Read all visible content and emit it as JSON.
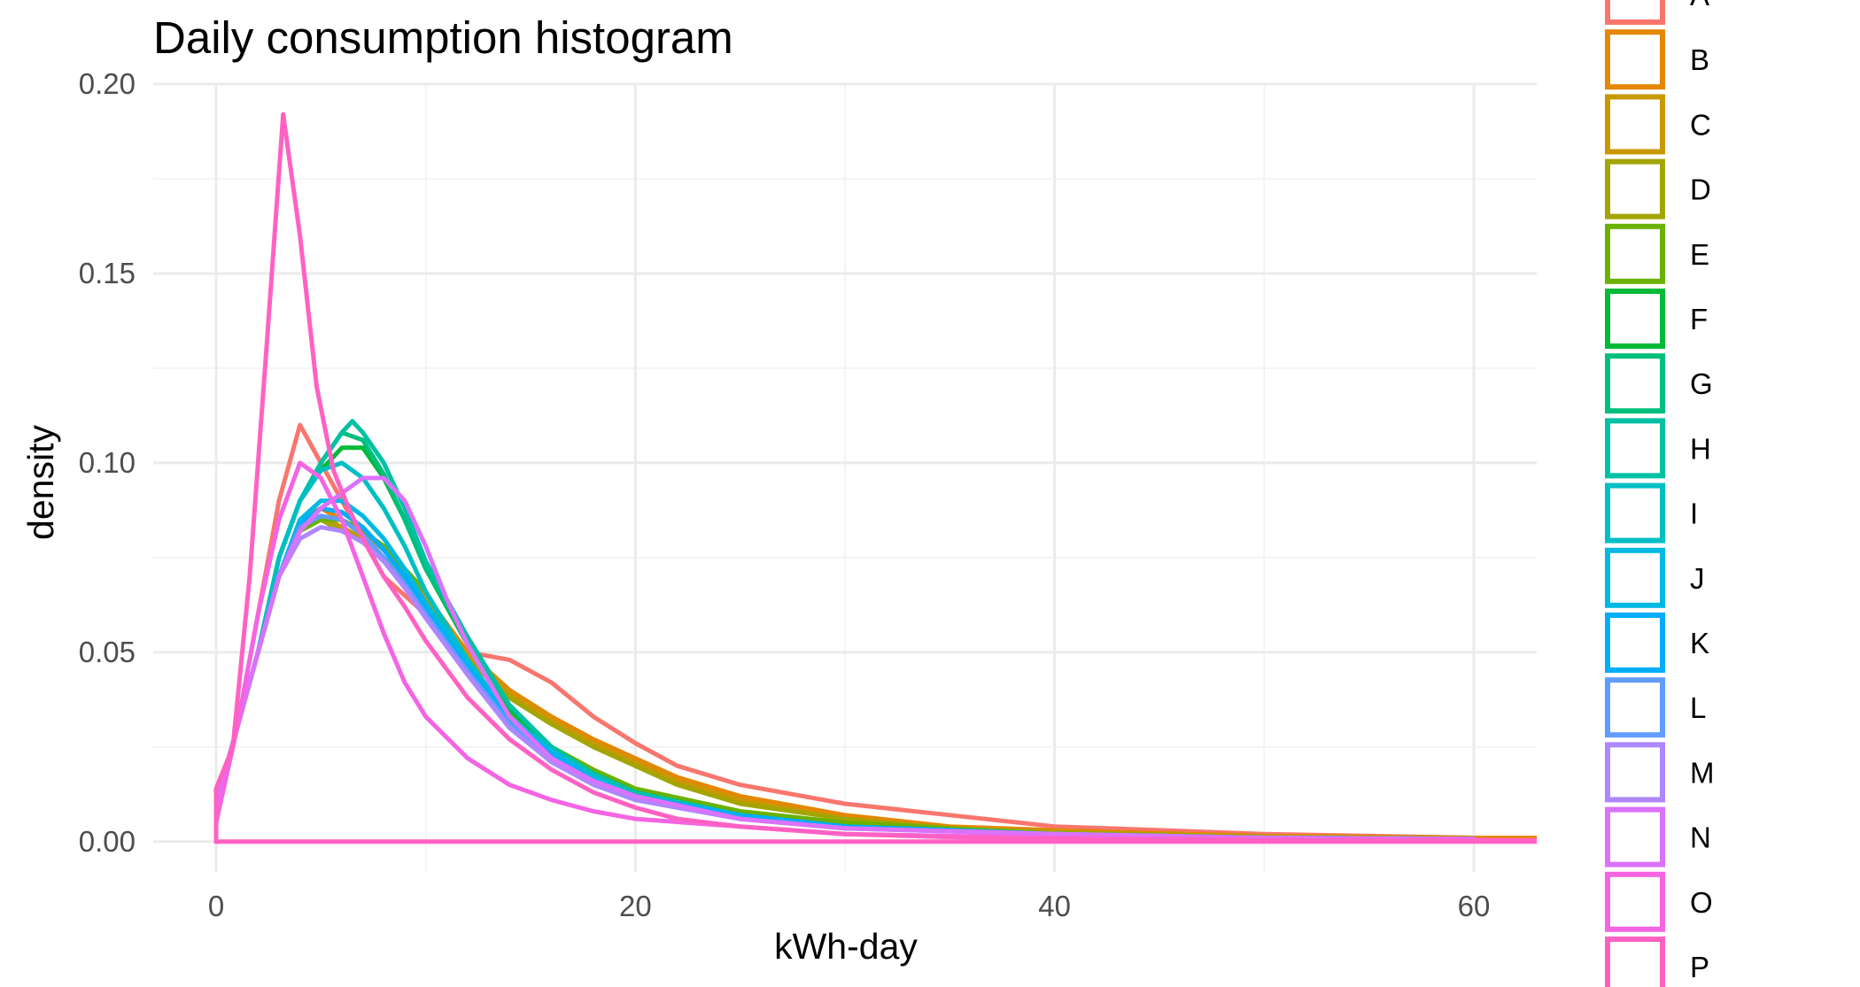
{
  "chart_data": {
    "type": "line",
    "title": "Daily consumption histogram",
    "xlabel": "kWh-day",
    "ylabel": "density",
    "xlim": [
      -3,
      63
    ],
    "ylim": [
      -0.008,
      0.2
    ],
    "x_ticks": [
      0,
      20,
      40,
      60
    ],
    "x_tick_labels": [
      "0",
      "20",
      "40",
      "60"
    ],
    "y_ticks": [
      0.0,
      0.05,
      0.1,
      0.15,
      0.2
    ],
    "y_tick_labels": [
      "0.00",
      "0.05",
      "0.10",
      "0.15",
      "0.20"
    ],
    "grid": true,
    "legend_position": "right",
    "legend": [
      "A",
      "B",
      "C",
      "D",
      "E",
      "F",
      "G",
      "H",
      "I",
      "J",
      "K",
      "L",
      "M",
      "N",
      "O",
      "P"
    ],
    "series": [
      {
        "name": "A",
        "color": "#F8766D",
        "opacity": 1.0,
        "x": [
          0,
          1,
          2,
          3,
          4,
          5,
          6,
          7,
          8,
          10,
          12,
          14,
          16,
          18,
          20,
          22,
          25,
          30,
          35,
          40,
          45,
          50,
          55,
          60,
          63
        ],
        "y": [
          0.01,
          0.03,
          0.06,
          0.09,
          0.11,
          0.1,
          0.09,
          0.08,
          0.07,
          0.06,
          0.05,
          0.048,
          0.042,
          0.033,
          0.026,
          0.02,
          0.015,
          0.01,
          0.007,
          0.004,
          0.003,
          0.002,
          0.0015,
          0.001,
          0.001
        ]
      },
      {
        "name": "B",
        "color": "#E58700",
        "opacity": 1.0,
        "x": [
          0,
          2,
          3,
          4,
          5,
          6,
          7,
          8,
          10,
          12,
          14,
          16,
          18,
          20,
          22,
          25,
          30,
          35,
          40,
          50,
          60,
          63
        ],
        "y": [
          0.01,
          0.05,
          0.07,
          0.085,
          0.088,
          0.085,
          0.082,
          0.077,
          0.065,
          0.05,
          0.04,
          0.033,
          0.027,
          0.022,
          0.017,
          0.012,
          0.007,
          0.004,
          0.003,
          0.0015,
          0.001,
          0.001
        ]
      },
      {
        "name": "C",
        "color": "#C99800",
        "opacity": 1.0,
        "x": [
          0,
          2,
          3,
          4,
          5,
          6,
          7,
          8,
          10,
          12,
          14,
          16,
          18,
          20,
          22,
          25,
          30,
          35,
          40,
          50,
          60
        ],
        "y": [
          0.01,
          0.05,
          0.07,
          0.084,
          0.086,
          0.083,
          0.08,
          0.075,
          0.064,
          0.049,
          0.039,
          0.032,
          0.026,
          0.021,
          0.016,
          0.011,
          0.006,
          0.0035,
          0.0025,
          0.0012,
          0.0008
        ]
      },
      {
        "name": "D",
        "color": "#A3A500",
        "opacity": 1.0,
        "x": [
          0,
          2,
          3,
          4,
          5,
          6,
          7,
          8,
          10,
          12,
          14,
          16,
          18,
          20,
          22,
          25,
          30,
          35,
          40,
          50,
          60
        ],
        "y": [
          0.01,
          0.05,
          0.07,
          0.083,
          0.085,
          0.082,
          0.079,
          0.074,
          0.063,
          0.048,
          0.038,
          0.031,
          0.025,
          0.02,
          0.015,
          0.01,
          0.006,
          0.0035,
          0.0025,
          0.0012,
          0.0008
        ]
      },
      {
        "name": "E",
        "color": "#6BB100",
        "opacity": 1.0,
        "x": [
          0,
          2,
          3,
          4,
          5,
          6,
          7,
          8,
          10,
          12,
          14,
          16,
          18,
          20,
          25,
          30,
          40,
          50,
          60
        ],
        "y": [
          0.01,
          0.05,
          0.07,
          0.082,
          0.085,
          0.085,
          0.082,
          0.078,
          0.066,
          0.047,
          0.034,
          0.025,
          0.019,
          0.014,
          0.008,
          0.005,
          0.002,
          0.001,
          0.0007
        ]
      },
      {
        "name": "F",
        "color": "#00BA38",
        "opacity": 1.0,
        "x": [
          0,
          2,
          3,
          4,
          5,
          6,
          7,
          8,
          9,
          10,
          12,
          14,
          16,
          18,
          20,
          25,
          30,
          40,
          50,
          60
        ],
        "y": [
          0.01,
          0.05,
          0.075,
          0.09,
          0.098,
          0.104,
          0.104,
          0.096,
          0.085,
          0.072,
          0.052,
          0.035,
          0.025,
          0.018,
          0.013,
          0.007,
          0.004,
          0.002,
          0.001,
          0.0007
        ]
      },
      {
        "name": "G",
        "color": "#00BF7D",
        "opacity": 1.0,
        "x": [
          0,
          2,
          3,
          4,
          5,
          6,
          7,
          8,
          9,
          10,
          12,
          14,
          16,
          18,
          20,
          25,
          30,
          40,
          50,
          60
        ],
        "y": [
          0.01,
          0.05,
          0.075,
          0.09,
          0.1,
          0.108,
          0.106,
          0.097,
          0.085,
          0.072,
          0.053,
          0.036,
          0.025,
          0.018,
          0.013,
          0.007,
          0.004,
          0.002,
          0.001,
          0.0007
        ]
      },
      {
        "name": "H",
        "color": "#00C1A3",
        "opacity": 1.0,
        "x": [
          0,
          2,
          3,
          4,
          5,
          6,
          6.5,
          7,
          8,
          9,
          10,
          12,
          14,
          16,
          18,
          20,
          25,
          30,
          40,
          50,
          60
        ],
        "y": [
          0.01,
          0.05,
          0.075,
          0.09,
          0.1,
          0.108,
          0.111,
          0.108,
          0.1,
          0.088,
          0.074,
          0.054,
          0.036,
          0.025,
          0.018,
          0.013,
          0.007,
          0.004,
          0.002,
          0.001,
          0.0007
        ]
      },
      {
        "name": "I",
        "color": "#00BFC4",
        "opacity": 1.0,
        "x": [
          0,
          2,
          3,
          4,
          5,
          6,
          7,
          8,
          9,
          10,
          12,
          14,
          16,
          18,
          20,
          25,
          30,
          40,
          50,
          60
        ],
        "y": [
          0.01,
          0.05,
          0.075,
          0.09,
          0.098,
          0.1,
          0.096,
          0.088,
          0.078,
          0.066,
          0.048,
          0.033,
          0.024,
          0.017,
          0.012,
          0.007,
          0.004,
          0.002,
          0.001,
          0.0007
        ]
      },
      {
        "name": "J",
        "color": "#00B9E3",
        "opacity": 1.0,
        "x": [
          0,
          2,
          3,
          4,
          5,
          6,
          7,
          8,
          9,
          10,
          12,
          14,
          16,
          18,
          20,
          25,
          30,
          40,
          50,
          60
        ],
        "y": [
          0.01,
          0.05,
          0.07,
          0.085,
          0.09,
          0.09,
          0.086,
          0.08,
          0.072,
          0.063,
          0.047,
          0.033,
          0.024,
          0.017,
          0.012,
          0.007,
          0.004,
          0.002,
          0.001,
          0.0007
        ]
      },
      {
        "name": "K",
        "color": "#00ADFA",
        "opacity": 1.0,
        "x": [
          0,
          2,
          3,
          4,
          5,
          6,
          7,
          8,
          9,
          10,
          12,
          14,
          16,
          18,
          20,
          25,
          30,
          40,
          50,
          60
        ],
        "y": [
          0.01,
          0.05,
          0.07,
          0.084,
          0.088,
          0.087,
          0.083,
          0.077,
          0.07,
          0.061,
          0.046,
          0.032,
          0.023,
          0.016,
          0.012,
          0.007,
          0.004,
          0.002,
          0.001,
          0.0007
        ]
      },
      {
        "name": "L",
        "color": "#619CFF",
        "opacity": 1.0,
        "x": [
          0,
          2,
          3,
          4,
          5,
          6,
          7,
          8,
          9,
          10,
          12,
          14,
          16,
          18,
          20,
          25,
          30,
          40,
          50,
          60
        ],
        "y": [
          0.01,
          0.05,
          0.07,
          0.083,
          0.086,
          0.085,
          0.081,
          0.075,
          0.068,
          0.06,
          0.045,
          0.031,
          0.022,
          0.016,
          0.011,
          0.006,
          0.0035,
          0.002,
          0.001,
          0.0007
        ]
      },
      {
        "name": "M",
        "color": "#AE87FF",
        "opacity": 1.0,
        "x": [
          0,
          2,
          3,
          4,
          5,
          6,
          7,
          8,
          9,
          10,
          12,
          14,
          16,
          18,
          20,
          25,
          30,
          40,
          50,
          60
        ],
        "y": [
          0.01,
          0.05,
          0.07,
          0.08,
          0.083,
          0.082,
          0.079,
          0.074,
          0.067,
          0.059,
          0.044,
          0.03,
          0.021,
          0.015,
          0.011,
          0.006,
          0.0035,
          0.002,
          0.001,
          0.0007
        ]
      },
      {
        "name": "N",
        "color": "#DB72FB",
        "opacity": 1.0,
        "x": [
          0,
          2,
          3,
          4,
          5,
          6,
          7,
          8,
          9,
          10,
          11,
          12,
          14,
          16,
          18,
          20,
          25,
          30,
          40,
          50,
          60
        ],
        "y": [
          0.01,
          0.05,
          0.07,
          0.082,
          0.088,
          0.092,
          0.096,
          0.096,
          0.09,
          0.078,
          0.064,
          0.052,
          0.033,
          0.022,
          0.016,
          0.012,
          0.006,
          0.0035,
          0.002,
          0.001,
          0.0007
        ]
      },
      {
        "name": "O",
        "color": "#F564E3",
        "opacity": 1.0,
        "x": [
          0,
          1,
          2,
          3,
          4,
          5,
          6,
          7,
          8,
          9,
          10,
          12,
          14,
          16,
          18,
          20,
          25,
          30,
          40,
          50,
          60,
          63
        ],
        "y": [
          0.005,
          0.03,
          0.06,
          0.085,
          0.1,
          0.096,
          0.085,
          0.07,
          0.055,
          0.042,
          0.033,
          0.022,
          0.015,
          0.011,
          0.008,
          0.006,
          0.004,
          0.002,
          0.001,
          0.0006,
          0.0004,
          0.0003
        ]
      },
      {
        "name": "P",
        "color": "#FF61C3",
        "opacity": 1.0,
        "x": [
          0,
          0.8,
          1.6,
          2.4,
          3.2,
          4,
          4.8,
          5.6,
          6.4,
          7.2,
          8,
          9,
          10,
          12,
          14,
          16,
          18,
          20,
          22,
          25,
          30,
          35,
          40,
          50,
          60,
          63
        ],
        "y": [
          0.014,
          0.025,
          0.07,
          0.13,
          0.192,
          0.16,
          0.12,
          0.098,
          0.087,
          0.078,
          0.07,
          0.062,
          0.053,
          0.038,
          0.027,
          0.019,
          0.013,
          0.009,
          0.006,
          0.004,
          0.002,
          0.0012,
          0.0007,
          0.0003,
          0.0002,
          0.0002
        ]
      }
    ]
  }
}
